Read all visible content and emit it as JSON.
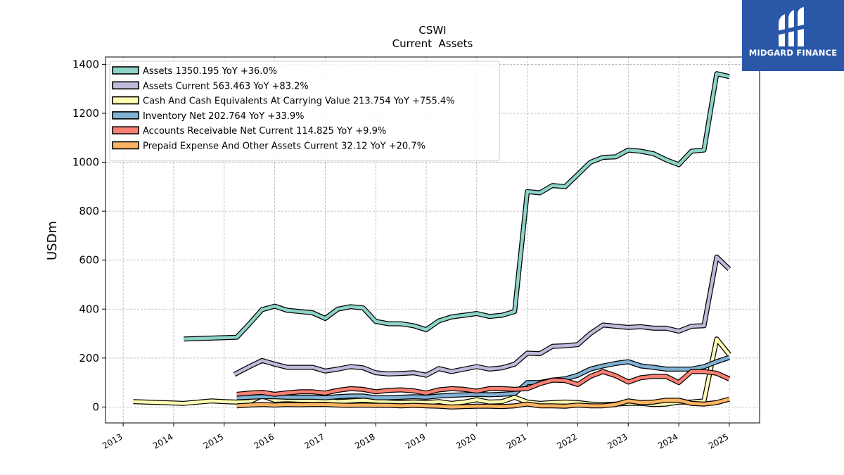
{
  "brand": {
    "name": "MIDGARD FINANCE",
    "bg_color": "#2a57a8"
  },
  "chart_data": {
    "type": "line",
    "title": "CSWI",
    "subtitle": "Current  Assets",
    "xlabel": "",
    "ylabel": "USDm",
    "xlim": [
      2012.65,
      2025.6
    ],
    "ylim": [
      -65,
      1430
    ],
    "x_ticks": [
      "2013",
      "2014",
      "2015",
      "2016",
      "2017",
      "2018",
      "2019",
      "2020",
      "2021",
      "2022",
      "2023",
      "2024",
      "2025"
    ],
    "y_ticks": [
      0,
      200,
      400,
      600,
      800,
      1000,
      1200,
      1400
    ],
    "grid": true,
    "legend_position": "upper-left",
    "series": [
      {
        "name": "Assets",
        "legend_label": "Assets  1350.195 YoY +36.0%",
        "color": "#8dd3c7",
        "points": [
          [
            2014.2,
            278
          ],
          [
            2015.25,
            285
          ],
          [
            2015.5,
            340
          ],
          [
            2015.75,
            398
          ],
          [
            2016.0,
            412
          ],
          [
            2016.25,
            395
          ],
          [
            2016.5,
            390
          ],
          [
            2016.75,
            385
          ],
          [
            2017.0,
            362
          ],
          [
            2017.25,
            400
          ],
          [
            2017.5,
            410
          ],
          [
            2017.75,
            405
          ],
          [
            2018.0,
            350
          ],
          [
            2018.25,
            340
          ],
          [
            2018.5,
            340
          ],
          [
            2018.75,
            332
          ],
          [
            2019.0,
            316
          ],
          [
            2019.25,
            352
          ],
          [
            2019.5,
            368
          ],
          [
            2019.75,
            375
          ],
          [
            2020.0,
            382
          ],
          [
            2020.25,
            370
          ],
          [
            2020.5,
            375
          ],
          [
            2020.75,
            390
          ],
          [
            2021.0,
            880
          ],
          [
            2021.25,
            875
          ],
          [
            2021.5,
            905
          ],
          [
            2021.75,
            900
          ],
          [
            2022.0,
            950
          ],
          [
            2022.25,
            1000
          ],
          [
            2022.5,
            1020
          ],
          [
            2022.75,
            1022
          ],
          [
            2023.0,
            1050
          ],
          [
            2023.25,
            1045
          ],
          [
            2023.5,
            1035
          ],
          [
            2023.75,
            1010
          ],
          [
            2024.0,
            990
          ],
          [
            2024.25,
            1045
          ],
          [
            2024.5,
            1050
          ],
          [
            2024.75,
            1362
          ],
          [
            2025.0,
            1350.195
          ]
        ]
      },
      {
        "name": "Assets Current",
        "legend_label": "Assets Current  563.463 YoY +83.2%",
        "color": "#bebada",
        "points": [
          [
            2015.2,
            133
          ],
          [
            2015.5,
            165
          ],
          [
            2015.75,
            190
          ],
          [
            2016.0,
            175
          ],
          [
            2016.25,
            162
          ],
          [
            2016.5,
            162
          ],
          [
            2016.75,
            162
          ],
          [
            2017.0,
            147
          ],
          [
            2017.25,
            155
          ],
          [
            2017.5,
            165
          ],
          [
            2017.75,
            160
          ],
          [
            2018.0,
            140
          ],
          [
            2018.25,
            135
          ],
          [
            2018.5,
            137
          ],
          [
            2018.75,
            140
          ],
          [
            2019.0,
            130
          ],
          [
            2019.25,
            157
          ],
          [
            2019.5,
            145
          ],
          [
            2019.75,
            155
          ],
          [
            2020.0,
            165
          ],
          [
            2020.25,
            155
          ],
          [
            2020.5,
            160
          ],
          [
            2020.75,
            175
          ],
          [
            2021.0,
            220
          ],
          [
            2021.25,
            218
          ],
          [
            2021.5,
            248
          ],
          [
            2021.75,
            250
          ],
          [
            2022.0,
            255
          ],
          [
            2022.25,
            300
          ],
          [
            2022.5,
            335
          ],
          [
            2022.75,
            330
          ],
          [
            2023.0,
            325
          ],
          [
            2023.25,
            328
          ],
          [
            2023.5,
            322
          ],
          [
            2023.75,
            322
          ],
          [
            2024.0,
            310
          ],
          [
            2024.25,
            330
          ],
          [
            2024.5,
            332
          ],
          [
            2024.75,
            613
          ],
          [
            2025.0,
            563.463
          ]
        ]
      },
      {
        "name": "Cash And Cash Equivalents At Carrying Value",
        "legend_label": "Cash And Cash Equivalents At Carrying Value  213.754 YoY +755.4%",
        "color": "#ffffb3",
        "points": [
          [
            2013.2,
            22
          ],
          [
            2014.2,
            15
          ],
          [
            2014.75,
            25
          ],
          [
            2015.0,
            22
          ],
          [
            2015.25,
            20
          ],
          [
            2015.5,
            22
          ],
          [
            2015.75,
            45
          ],
          [
            2016.0,
            28
          ],
          [
            2016.25,
            30
          ],
          [
            2016.5,
            28
          ],
          [
            2016.75,
            27
          ],
          [
            2017.0,
            28
          ],
          [
            2017.25,
            22
          ],
          [
            2017.5,
            25
          ],
          [
            2017.75,
            28
          ],
          [
            2018.0,
            25
          ],
          [
            2018.25,
            20
          ],
          [
            2018.5,
            18
          ],
          [
            2018.75,
            20
          ],
          [
            2019.0,
            18
          ],
          [
            2019.25,
            22
          ],
          [
            2019.5,
            15
          ],
          [
            2019.75,
            20
          ],
          [
            2020.0,
            30
          ],
          [
            2020.25,
            20
          ],
          [
            2020.5,
            22
          ],
          [
            2020.75,
            40
          ],
          [
            2021.0,
            20
          ],
          [
            2021.25,
            15
          ],
          [
            2021.5,
            18
          ],
          [
            2021.75,
            20
          ],
          [
            2022.0,
            18
          ],
          [
            2022.25,
            12
          ],
          [
            2022.5,
            10
          ],
          [
            2022.75,
            12
          ],
          [
            2023.0,
            15
          ],
          [
            2023.25,
            15
          ],
          [
            2023.5,
            10
          ],
          [
            2023.75,
            12
          ],
          [
            2024.0,
            20
          ],
          [
            2024.25,
            20
          ],
          [
            2024.5,
            25
          ],
          [
            2024.75,
            278
          ],
          [
            2025.0,
            213.754
          ]
        ]
      },
      {
        "name": "Inventory Net",
        "legend_label": "Inventory Net  202.764 YoY +33.9%",
        "color": "#80b1d3",
        "points": [
          [
            2015.25,
            38
          ],
          [
            2015.5,
            40
          ],
          [
            2015.75,
            42
          ],
          [
            2016.0,
            42
          ],
          [
            2016.25,
            40
          ],
          [
            2016.5,
            40
          ],
          [
            2016.75,
            40
          ],
          [
            2017.0,
            38
          ],
          [
            2017.25,
            42
          ],
          [
            2017.5,
            45
          ],
          [
            2017.75,
            45
          ],
          [
            2018.0,
            38
          ],
          [
            2018.25,
            38
          ],
          [
            2018.5,
            40
          ],
          [
            2018.75,
            42
          ],
          [
            2019.0,
            40
          ],
          [
            2019.25,
            45
          ],
          [
            2019.5,
            48
          ],
          [
            2019.75,
            50
          ],
          [
            2020.0,
            52
          ],
          [
            2020.25,
            50
          ],
          [
            2020.5,
            52
          ],
          [
            2020.75,
            55
          ],
          [
            2021.0,
            100
          ],
          [
            2021.25,
            100
          ],
          [
            2021.5,
            110
          ],
          [
            2021.75,
            115
          ],
          [
            2022.0,
            130
          ],
          [
            2022.25,
            155
          ],
          [
            2022.5,
            168
          ],
          [
            2022.75,
            178
          ],
          [
            2023.0,
            185
          ],
          [
            2023.25,
            168
          ],
          [
            2023.5,
            162
          ],
          [
            2023.75,
            155
          ],
          [
            2024.0,
            155
          ],
          [
            2024.25,
            155
          ],
          [
            2024.5,
            165
          ],
          [
            2024.75,
            185
          ],
          [
            2025.0,
            202.764
          ]
        ]
      },
      {
        "name": "Accounts Receivable Net Current",
        "legend_label": "Accounts Receivable Net Current  114.825 YoY +9.9%",
        "color": "#fb8072",
        "points": [
          [
            2015.25,
            52
          ],
          [
            2015.5,
            57
          ],
          [
            2015.75,
            60
          ],
          [
            2016.0,
            52
          ],
          [
            2016.25,
            58
          ],
          [
            2016.5,
            62
          ],
          [
            2016.75,
            62
          ],
          [
            2017.0,
            57
          ],
          [
            2017.25,
            68
          ],
          [
            2017.5,
            75
          ],
          [
            2017.75,
            72
          ],
          [
            2018.0,
            62
          ],
          [
            2018.25,
            68
          ],
          [
            2018.5,
            70
          ],
          [
            2018.75,
            66
          ],
          [
            2019.0,
            57
          ],
          [
            2019.25,
            70
          ],
          [
            2019.5,
            75
          ],
          [
            2019.75,
            72
          ],
          [
            2020.0,
            65
          ],
          [
            2020.25,
            75
          ],
          [
            2020.5,
            75
          ],
          [
            2020.75,
            72
          ],
          [
            2021.0,
            75
          ],
          [
            2021.25,
            95
          ],
          [
            2021.5,
            110
          ],
          [
            2021.75,
            108
          ],
          [
            2022.0,
            92
          ],
          [
            2022.25,
            125
          ],
          [
            2022.5,
            145
          ],
          [
            2022.75,
            128
          ],
          [
            2023.0,
            102
          ],
          [
            2023.25,
            120
          ],
          [
            2023.5,
            125
          ],
          [
            2023.75,
            125
          ],
          [
            2024.0,
            100
          ],
          [
            2024.25,
            145
          ],
          [
            2024.5,
            145
          ],
          [
            2024.75,
            138
          ],
          [
            2025.0,
            114.825
          ]
        ]
      },
      {
        "name": "Prepaid Expense And Other Assets Current",
        "legend_label": "Prepaid Expense And Other Assets Current  32.12 YoY +20.7%",
        "color": "#fdb462",
        "points": [
          [
            2015.25,
            5
          ],
          [
            2015.5,
            8
          ],
          [
            2015.75,
            10
          ],
          [
            2016.0,
            8
          ],
          [
            2016.25,
            10
          ],
          [
            2016.5,
            9
          ],
          [
            2016.75,
            10
          ],
          [
            2017.0,
            10
          ],
          [
            2017.25,
            8
          ],
          [
            2017.5,
            7
          ],
          [
            2017.75,
            8
          ],
          [
            2018.0,
            7
          ],
          [
            2018.25,
            7
          ],
          [
            2018.5,
            5
          ],
          [
            2018.75,
            7
          ],
          [
            2019.0,
            5
          ],
          [
            2019.25,
            3
          ],
          [
            2019.5,
            0
          ],
          [
            2019.75,
            2
          ],
          [
            2020.0,
            3
          ],
          [
            2020.25,
            3
          ],
          [
            2020.5,
            2
          ],
          [
            2020.75,
            5
          ],
          [
            2021.0,
            12
          ],
          [
            2021.25,
            5
          ],
          [
            2021.5,
            5
          ],
          [
            2021.75,
            3
          ],
          [
            2022.0,
            8
          ],
          [
            2022.25,
            5
          ],
          [
            2022.5,
            5
          ],
          [
            2022.75,
            10
          ],
          [
            2023.0,
            25
          ],
          [
            2023.25,
            18
          ],
          [
            2023.5,
            20
          ],
          [
            2023.75,
            28
          ],
          [
            2024.0,
            28
          ],
          [
            2024.25,
            15
          ],
          [
            2024.5,
            12
          ],
          [
            2024.75,
            18
          ],
          [
            2025.0,
            32.12
          ]
        ]
      }
    ]
  }
}
